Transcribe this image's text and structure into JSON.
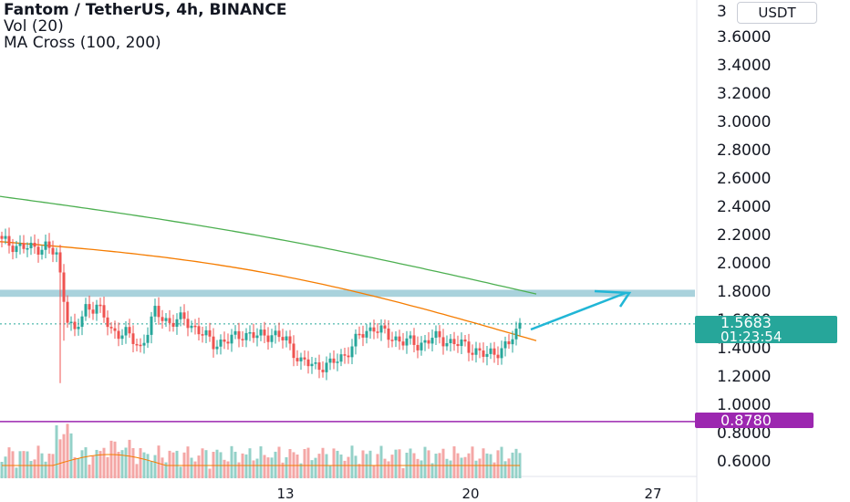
{
  "header": {
    "title": "Fantom / TetherUS, 4h, BINANCE",
    "vol_label": "Vol (20)",
    "ma_label": "MA Cross (100, 200)",
    "currency_button": "USDT",
    "price_scale_top_digit": "3"
  },
  "price_axis": {
    "ticks": [
      "3.6000",
      "3.4000",
      "3.2000",
      "3.0000",
      "2.8000",
      "2.6000",
      "2.4000",
      "2.2000",
      "2.0000",
      "1.8000",
      "1.6000",
      "1.4000",
      "1.2000",
      "1.0000",
      "0.8000",
      "0.6000"
    ],
    "tick_values": [
      3.6,
      3.4,
      3.2,
      3.0,
      2.8,
      2.6,
      2.4,
      2.2,
      2.0,
      1.8,
      1.6,
      1.4,
      1.2,
      1.0,
      0.8,
      0.6
    ]
  },
  "time_axis": {
    "labels": [
      "13",
      "20",
      "27"
    ]
  },
  "badges": {
    "last_price": "1.5683",
    "countdown": "01:23:54",
    "level_price": "0.8780",
    "last_price_color": "#26a69a",
    "level_color": "#9c27b0"
  },
  "colors": {
    "up": "#26a69a",
    "down": "#ef5350",
    "ma100": "#f57c00",
    "ma200": "#4caf50",
    "resistance_zone": "#a9d2dc",
    "arrow": "#21b6d6",
    "support_line": "#9c27b0"
  },
  "chart_data": {
    "type": "candlestick",
    "symbol": "Fantom / TetherUS",
    "timeframe": "4h",
    "exchange": "BINANCE",
    "y_axis": {
      "range": [
        0.5,
        3.75
      ],
      "scale": "linear"
    },
    "x_axis_labels": [
      "13",
      "20",
      "27"
    ],
    "close_path": [
      {
        "i": 0,
        "close": 2.15
      },
      {
        "i": 4,
        "close": 2.12
      },
      {
        "i": 8,
        "close": 2.1
      },
      {
        "i": 12,
        "close": 2.12
      },
      {
        "i": 15,
        "close": 2.05
      },
      {
        "i": 18,
        "close": 1.62
      },
      {
        "i": 20,
        "close": 1.5
      },
      {
        "i": 23,
        "close": 1.68
      },
      {
        "i": 26,
        "close": 1.7
      },
      {
        "i": 30,
        "close": 1.52
      },
      {
        "i": 34,
        "close": 1.5
      },
      {
        "i": 38,
        "close": 1.4
      },
      {
        "i": 42,
        "close": 1.65
      },
      {
        "i": 46,
        "close": 1.58
      },
      {
        "i": 50,
        "close": 1.6
      },
      {
        "i": 54,
        "close": 1.52
      },
      {
        "i": 58,
        "close": 1.43
      },
      {
        "i": 62,
        "close": 1.45
      },
      {
        "i": 66,
        "close": 1.5
      },
      {
        "i": 70,
        "close": 1.48
      },
      {
        "i": 74,
        "close": 1.5
      },
      {
        "i": 78,
        "close": 1.45
      },
      {
        "i": 82,
        "close": 1.3
      },
      {
        "i": 86,
        "close": 1.27
      },
      {
        "i": 90,
        "close": 1.28
      },
      {
        "i": 94,
        "close": 1.35
      },
      {
        "i": 98,
        "close": 1.48
      },
      {
        "i": 102,
        "close": 1.55
      },
      {
        "i": 106,
        "close": 1.48
      },
      {
        "i": 110,
        "close": 1.45
      },
      {
        "i": 114,
        "close": 1.42
      },
      {
        "i": 118,
        "close": 1.47
      },
      {
        "i": 122,
        "close": 1.45
      },
      {
        "i": 126,
        "close": 1.42
      },
      {
        "i": 130,
        "close": 1.38
      },
      {
        "i": 133,
        "close": 1.34
      },
      {
        "i": 136,
        "close": 1.38
      },
      {
        "i": 139,
        "close": 1.43
      },
      {
        "i": 141,
        "close": 1.5
      },
      {
        "i": 142,
        "close": 1.57
      }
    ],
    "moving_averages": [
      {
        "name": "MA 100",
        "color": "#f57c00",
        "start": 2.15,
        "end": 1.45
      },
      {
        "name": "MA 200",
        "color": "#4caf50",
        "start": 2.47,
        "end": 1.78
      }
    ],
    "resistance_zone": {
      "low": 1.76,
      "high": 1.81
    },
    "support_level": 0.878,
    "last_price": 1.5683,
    "projection_target": 1.77
  }
}
